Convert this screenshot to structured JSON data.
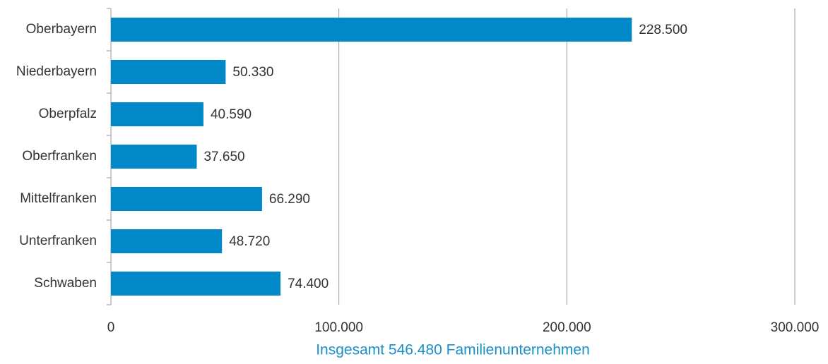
{
  "chart_data": {
    "type": "bar",
    "orientation": "horizontal",
    "categories": [
      "Oberbayern",
      "Niederbayern",
      "Oberpfalz",
      "Oberfranken",
      "Mittelfranken",
      "Unterfranken",
      "Schwaben"
    ],
    "values": [
      228500,
      50330,
      40590,
      37650,
      66290,
      48720,
      74400
    ],
    "value_labels": [
      "228.500",
      "50.330",
      "40.590",
      "37.650",
      "66.290",
      "48.720",
      "74.400"
    ],
    "color": "#0088c8",
    "xlabel": "Insgesamt 546.480 Familienunternehmen",
    "xlim": [
      0,
      300000
    ],
    "xticks": [
      0,
      {
        "value": 100000,
        "label": "100.000"
      },
      {
        "value": 200000,
        "label": "200.000"
      },
      {
        "value": 300000,
        "label": "300.000"
      }
    ],
    "grid": true
  }
}
